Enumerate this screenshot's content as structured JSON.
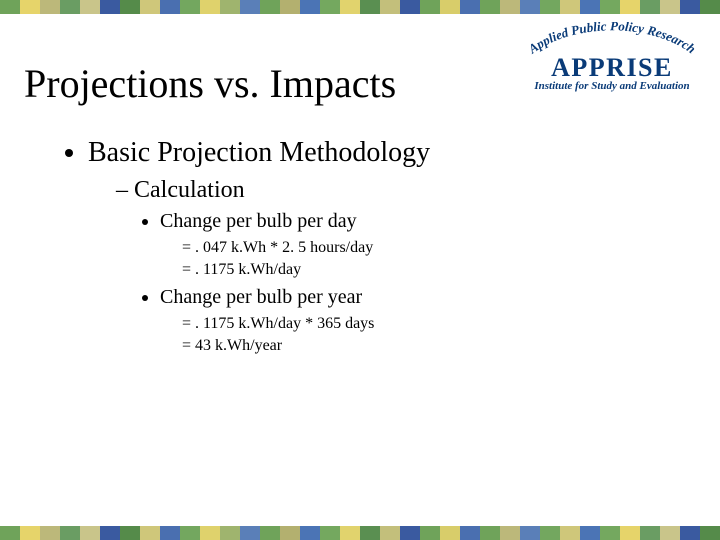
{
  "border": {
    "colors": [
      "#6fa35a",
      "#e6d46a",
      "#bcb87a",
      "#6a9d63",
      "#c9c58a",
      "#3a5aa0",
      "#558b4a",
      "#cfc77a",
      "#4a6fb0",
      "#73a75f",
      "#dfd26c",
      "#9fb46e",
      "#5a7fb8",
      "#6fa35a",
      "#b3b06f",
      "#4b74b5",
      "#74a85f",
      "#e1d36d",
      "#5a8f51",
      "#c3bf7b",
      "#3a5aa0",
      "#6fa35a",
      "#d8cd6a",
      "#4a6fb0",
      "#6fa35a",
      "#bcb87a",
      "#5a7fb8",
      "#73a75f",
      "#cfc77a",
      "#4b74b5",
      "#74a85f",
      "#e6d46a",
      "#6a9d63",
      "#c9c58a",
      "#3a5aa0",
      "#558b4a"
    ]
  },
  "logo": {
    "top_arc": "Applied Public Policy Research",
    "name": "APPRISE",
    "subtitle": "Institute for Study and Evaluation",
    "color": "#0a3b78"
  },
  "title": "Projections vs. Impacts",
  "bullets": {
    "l1": "Basic Projection Methodology",
    "l2": "Calculation",
    "l3a": "Change per bulb per day",
    "l3a_formula1": "= . 047 k.Wh * 2. 5 hours/day",
    "l3a_formula2": "= . 1175 k.Wh/day",
    "l3b": "Change per bulb per year",
    "l3b_formula1": "= . 1175 k.Wh/day * 365 days",
    "l3b_formula2": "=  43 k.Wh/year"
  }
}
